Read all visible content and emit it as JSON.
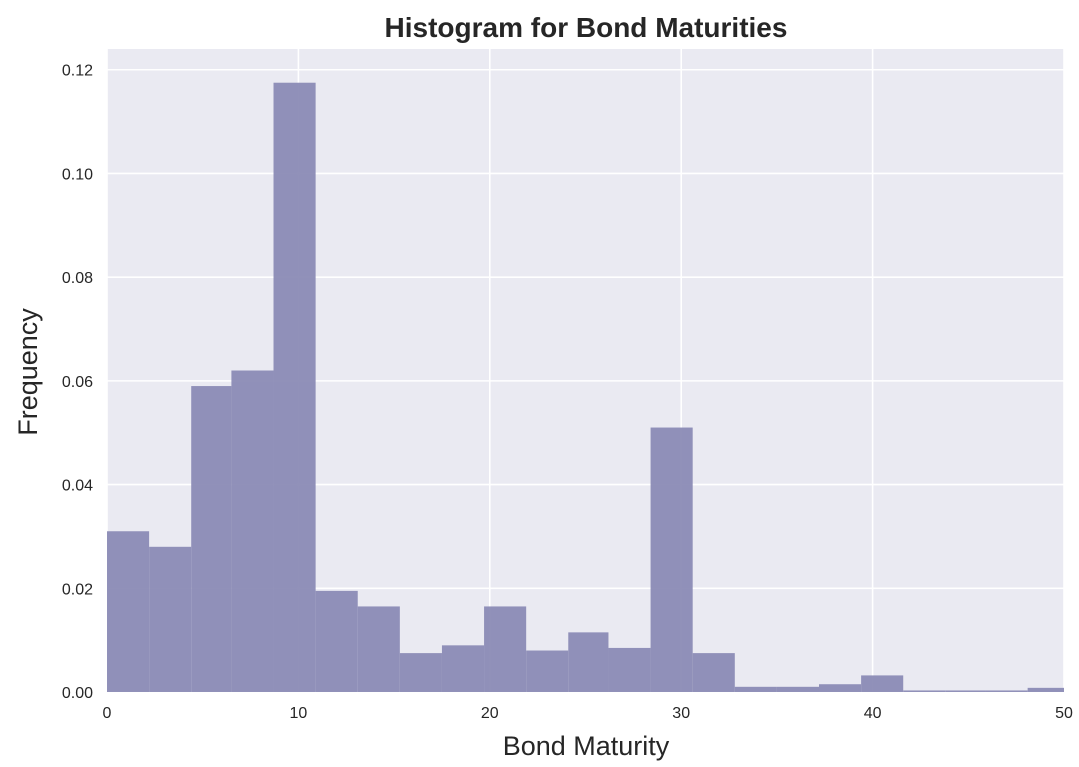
{
  "chart_data": {
    "type": "bar",
    "title": "Histogram for Bond Maturities",
    "xlabel": "Bond Maturity",
    "ylabel": "Frequency",
    "xlim": [
      0,
      50
    ],
    "ylim": [
      0,
      0.124
    ],
    "xticks": [
      "0",
      "10",
      "20",
      "30",
      "40",
      "50"
    ],
    "yticks": [
      "0.00",
      "0.02",
      "0.04",
      "0.06",
      "0.08",
      "0.10",
      "0.12"
    ],
    "grid": true,
    "colors": {
      "background": "#EAEAF2",
      "grid": "#FFFFFF",
      "bar": "#8B8BB5"
    },
    "bins": [
      {
        "start": 0.0,
        "end": 2.2,
        "value": 0.031
      },
      {
        "start": 2.2,
        "end": 4.4,
        "value": 0.028
      },
      {
        "start": 4.4,
        "end": 6.5,
        "value": 0.059
      },
      {
        "start": 6.5,
        "end": 8.7,
        "value": 0.062
      },
      {
        "start": 8.7,
        "end": 10.9,
        "value": 0.1175
      },
      {
        "start": 10.9,
        "end": 13.1,
        "value": 0.0195
      },
      {
        "start": 13.1,
        "end": 15.3,
        "value": 0.0165
      },
      {
        "start": 15.3,
        "end": 17.5,
        "value": 0.0075
      },
      {
        "start": 17.5,
        "end": 19.7,
        "value": 0.009
      },
      {
        "start": 19.7,
        "end": 21.9,
        "value": 0.0165
      },
      {
        "start": 21.9,
        "end": 24.1,
        "value": 0.008
      },
      {
        "start": 24.1,
        "end": 26.2,
        "value": 0.0115
      },
      {
        "start": 26.2,
        "end": 28.4,
        "value": 0.0085
      },
      {
        "start": 28.4,
        "end": 30.6,
        "value": 0.051
      },
      {
        "start": 30.6,
        "end": 32.8,
        "value": 0.0075
      },
      {
        "start": 32.8,
        "end": 35.0,
        "value": 0.001
      },
      {
        "start": 35.0,
        "end": 37.2,
        "value": 0.001
      },
      {
        "start": 37.2,
        "end": 39.4,
        "value": 0.0015
      },
      {
        "start": 39.4,
        "end": 41.6,
        "value": 0.0032
      },
      {
        "start": 41.6,
        "end": 43.8,
        "value": 0.0003
      },
      {
        "start": 43.8,
        "end": 45.9,
        "value": 0.0003
      },
      {
        "start": 45.9,
        "end": 48.1,
        "value": 0.0003
      },
      {
        "start": 48.1,
        "end": 50.0,
        "value": 0.0008
      }
    ]
  }
}
